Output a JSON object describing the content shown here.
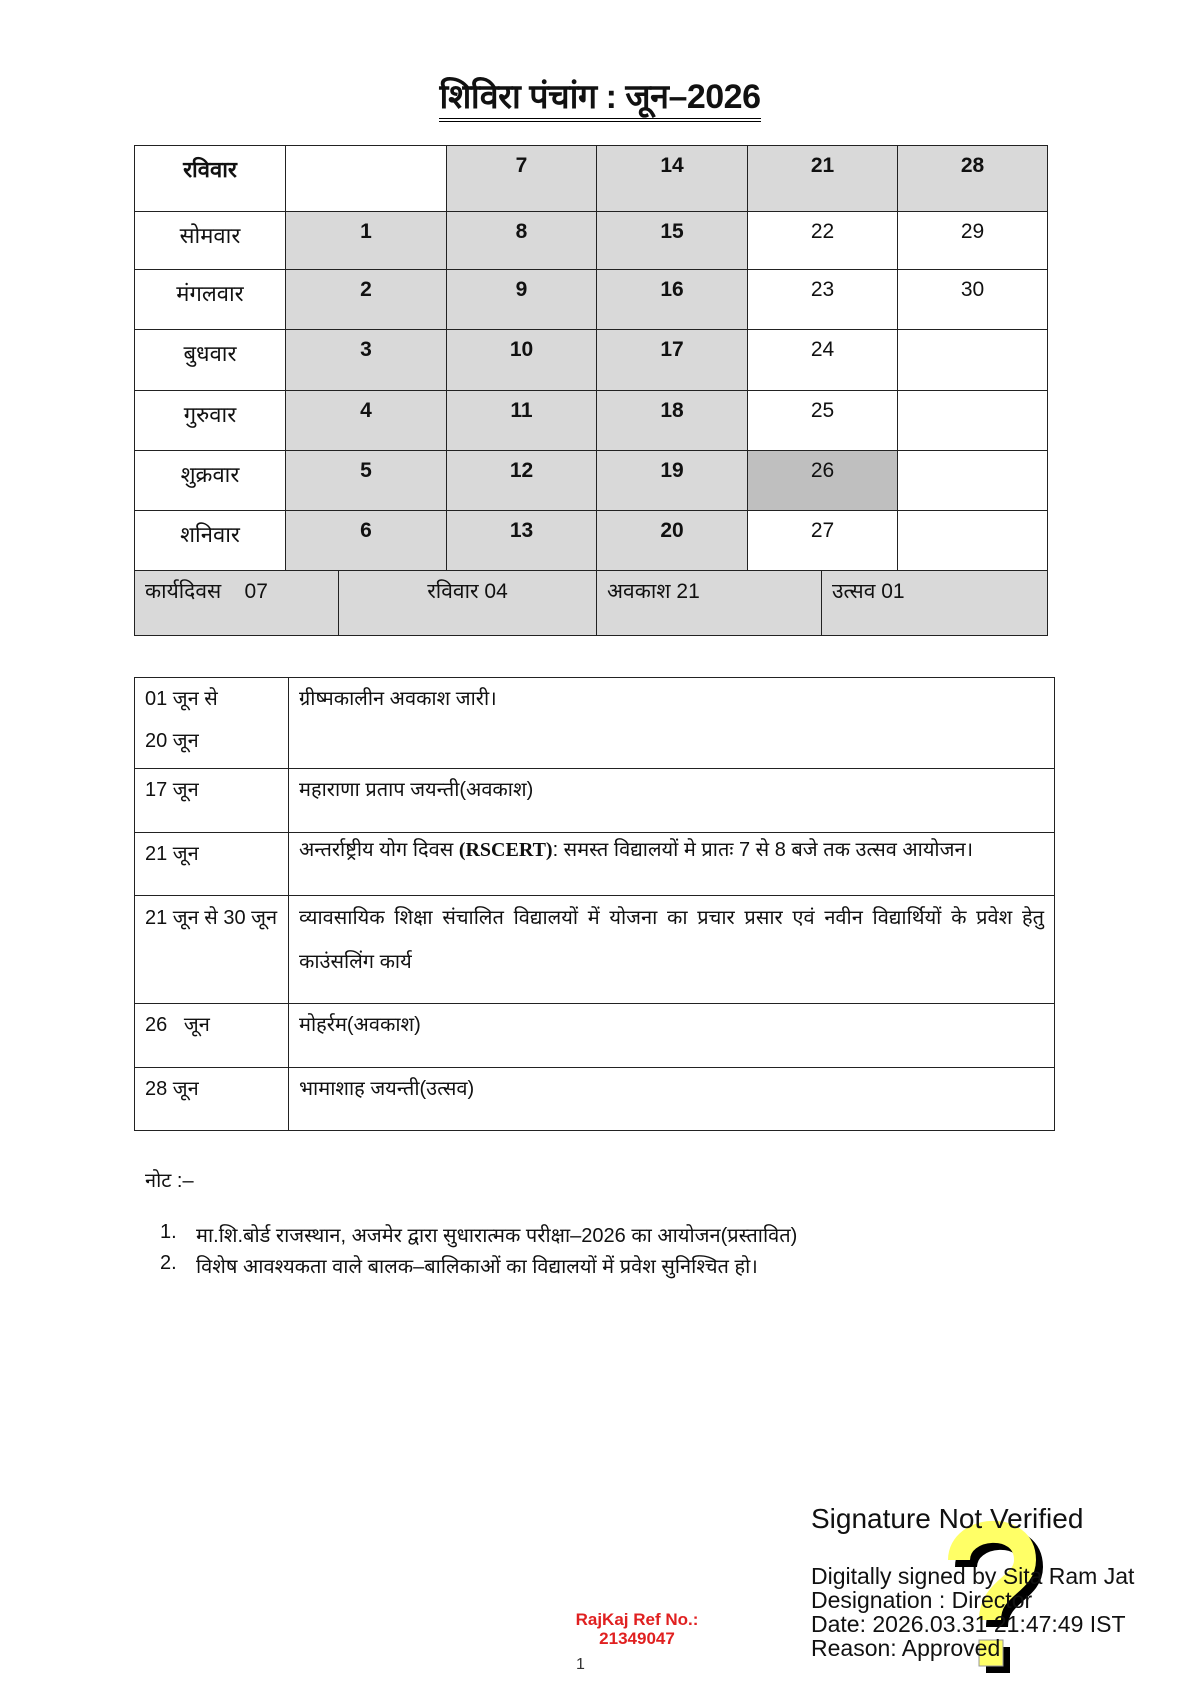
{
  "title": "शिविरा पंचांग : जून–2026",
  "calendar": {
    "colors": {
      "shade": "#d9d9d9",
      "dark_shade": "#bfbfbf"
    },
    "rows": [
      {
        "day": "रविवार",
        "bold_day": true,
        "cells": [
          "",
          "7",
          "14",
          "21",
          "28"
        ]
      },
      {
        "day": "सोमवार",
        "cells": [
          "1",
          "8",
          "15",
          "22",
          "29"
        ]
      },
      {
        "day": "मंगलवार",
        "cells": [
          "2",
          "9",
          "16",
          "23",
          "30"
        ]
      },
      {
        "day": "बुधवार",
        "cells": [
          "3",
          "10",
          "17",
          "24",
          ""
        ]
      },
      {
        "day": "गुरुवार",
        "cells": [
          "4",
          "11",
          "18",
          "25",
          ""
        ]
      },
      {
        "day": "शुक्रवार",
        "cells": [
          "5",
          "12",
          "19",
          "26",
          ""
        ]
      },
      {
        "day": "शनिवार",
        "cells": [
          "6",
          "13",
          "20",
          "27",
          ""
        ]
      }
    ],
    "summary": [
      "कार्यदिवस    07",
      "रविवार 04",
      "अवकाश 21",
      "उत्सव 01"
    ]
  },
  "events": [
    {
      "date": "01 जून से\n 20 जून",
      "text": "ग्रीष्मकालीन अवकाश जारी।"
    },
    {
      "date": "17 जून",
      "text": "महाराणा प्रताप जयन्ती(अवकाश)"
    },
    {
      "date": "21 जून",
      "text_pre": "अन्तर्राष्ट्रीय योग दिवस ",
      "text_bold": "(RSCERT)",
      "text_post": ": समस्त विद्यालयों मे प्रातः 7 से 8 बजे तक उत्सव आयोजन।"
    },
    {
      "date": "21 जून से 30 जून",
      "text": "व्यावसायिक शिक्षा संचालित विद्यालयों में योजना का प्रचार प्रसार एवं नवीन विद्यार्थियों के प्रवेश हेतु काउंसलिंग कार्य"
    },
    {
      "date": "26   जून",
      "text": "मोहर्रम(अवकाश)"
    },
    {
      "date": "28 जून",
      "text": "भामाशाह जयन्ती(उत्सव)"
    }
  ],
  "notes": {
    "heading": "नोट :–",
    "items": [
      {
        "num": "1.",
        "text": "मा.शि.बोर्ड राजस्थान, अजमेर द्वारा सुधारात्मक परीक्षा–2026 का आयोजन(प्रस्तावित)"
      },
      {
        "num": "2.",
        "text": "विशेष आवश्यकता वाले बालक–बालिकाओं का विद्यालयों में प्रवेश सुनिश्चित हो।"
      }
    ]
  },
  "signature": {
    "status": "Signature Not Verified",
    "signed_by": "Digitally signed by Sita Ram Jat",
    "designation": "Designation : Director",
    "date": "Date: 2026.03.31 21:47:49 IST",
    "reason": "Reason: Approved",
    "icon": "question-mark-icon",
    "icon_color": "#ffff66"
  },
  "ref": {
    "label": "RajKaj Ref No.:",
    "number": "21349047",
    "color": "#e02020"
  },
  "page_number": "1"
}
